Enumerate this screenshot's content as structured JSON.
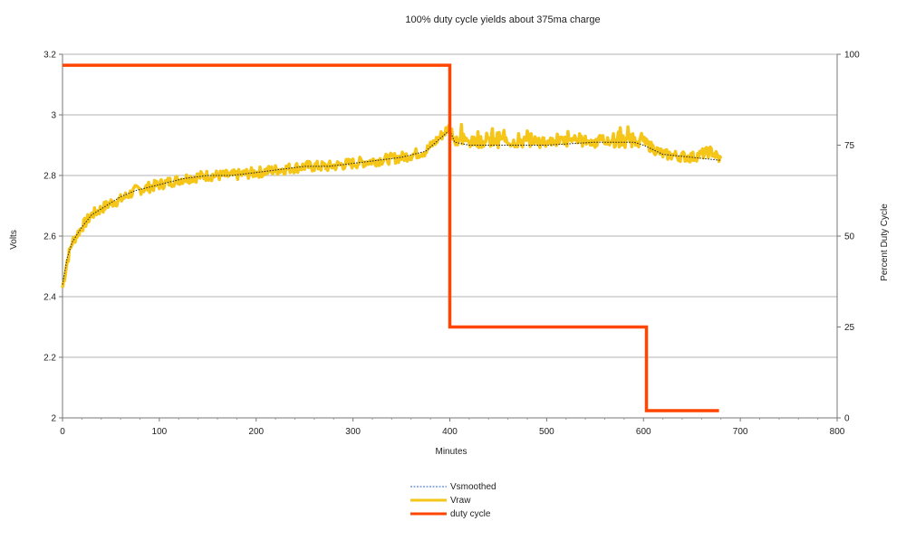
{
  "chart_data": {
    "type": "line",
    "title": "100% duty cycle yields about 375ma charge",
    "xlabel": "Minutes",
    "ylabel_left": "Volts",
    "ylabel_right": "Percent Duty Cycle",
    "xlim": [
      0,
      800
    ],
    "ylim_left": [
      2,
      3.2
    ],
    "ylim_right": [
      0,
      100
    ],
    "x_ticks": [
      0,
      100,
      200,
      300,
      400,
      500,
      600,
      700,
      800
    ],
    "y_left_ticks": [
      2,
      2.2,
      2.4,
      2.6,
      2.8,
      3,
      3.2
    ],
    "y_right_ticks": [
      0,
      25,
      50,
      75,
      100
    ],
    "grid": true,
    "legend_position": "bottom-center",
    "series": [
      {
        "name": "Vsmoothed",
        "axis": "left",
        "color": "#3366cc",
        "style": "dotted",
        "x": [
          0,
          5,
          10,
          20,
          30,
          40,
          50,
          60,
          75,
          100,
          125,
          150,
          175,
          200,
          225,
          250,
          275,
          300,
          325,
          350,
          375,
          400,
          405,
          420,
          450,
          500,
          550,
          590,
          600,
          620,
          650,
          680
        ],
        "values": [
          2.44,
          2.53,
          2.58,
          2.63,
          2.67,
          2.69,
          2.71,
          2.73,
          2.75,
          2.77,
          2.79,
          2.8,
          2.8,
          2.81,
          2.82,
          2.83,
          2.83,
          2.84,
          2.85,
          2.86,
          2.88,
          2.95,
          2.91,
          2.9,
          2.9,
          2.9,
          2.91,
          2.91,
          2.9,
          2.87,
          2.86,
          2.85
        ]
      },
      {
        "name": "Vraw",
        "axis": "left",
        "color": "#f5c518",
        "style": "solid",
        "x": [
          0,
          5,
          10,
          20,
          30,
          40,
          50,
          60,
          75,
          100,
          125,
          150,
          175,
          200,
          225,
          250,
          275,
          300,
          325,
          350,
          375,
          400,
          405,
          420,
          450,
          500,
          550,
          590,
          600,
          620,
          650,
          670,
          680
        ],
        "values": [
          2.43,
          2.52,
          2.58,
          2.63,
          2.67,
          2.69,
          2.71,
          2.72,
          2.75,
          2.77,
          2.79,
          2.8,
          2.8,
          2.81,
          2.82,
          2.83,
          2.83,
          2.84,
          2.85,
          2.86,
          2.88,
          2.96,
          2.92,
          2.91,
          2.91,
          2.91,
          2.91,
          2.91,
          2.91,
          2.87,
          2.86,
          2.88,
          2.85
        ],
        "noise_amplitude": 0.03
      },
      {
        "name": "duty cycle",
        "axis": "right",
        "color": "#ff4500",
        "style": "step",
        "x": [
          0,
          400,
          400,
          603,
          603,
          678
        ],
        "values": [
          97,
          97,
          25,
          25,
          2,
          2
        ]
      }
    ]
  }
}
